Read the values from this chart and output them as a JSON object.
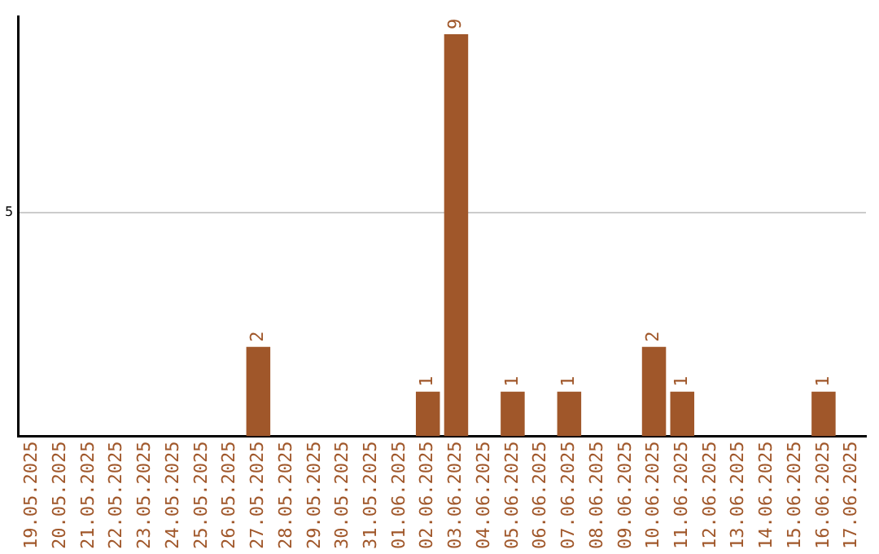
{
  "chart_data": {
    "type": "bar",
    "categories": [
      "19.05.2025",
      "20.05.2025",
      "21.05.2025",
      "22.05.2025",
      "23.05.2025",
      "24.05.2025",
      "25.05.2025",
      "26.05.2025",
      "27.05.2025",
      "28.05.2025",
      "29.05.2025",
      "30.05.2025",
      "31.05.2025",
      "01.06.2025",
      "02.06.2025",
      "03.06.2025",
      "04.06.2025",
      "05.06.2025",
      "06.06.2025",
      "07.06.2025",
      "08.06.2025",
      "09.06.2025",
      "10.06.2025",
      "11.06.2025",
      "12.06.2025",
      "13.06.2025",
      "14.06.2025",
      "15.06.2025",
      "16.06.2025",
      "17.06.2025"
    ],
    "values": [
      0,
      0,
      0,
      0,
      0,
      0,
      0,
      0,
      2,
      0,
      0,
      0,
      0,
      0,
      1,
      9,
      0,
      1,
      0,
      1,
      0,
      0,
      2,
      1,
      0,
      0,
      0,
      0,
      1,
      0
    ],
    "value_labels": [
      null,
      null,
      null,
      null,
      null,
      null,
      null,
      null,
      "2",
      null,
      null,
      null,
      null,
      null,
      "1",
      "9",
      null,
      "1",
      null,
      "1",
      null,
      null,
      "2",
      "1",
      null,
      null,
      null,
      null,
      "1",
      null
    ],
    "color": "#a0572a",
    "ylim": [
      0,
      9.4
    ],
    "yticks": [
      5
    ],
    "grid": "y",
    "legend": false
  }
}
